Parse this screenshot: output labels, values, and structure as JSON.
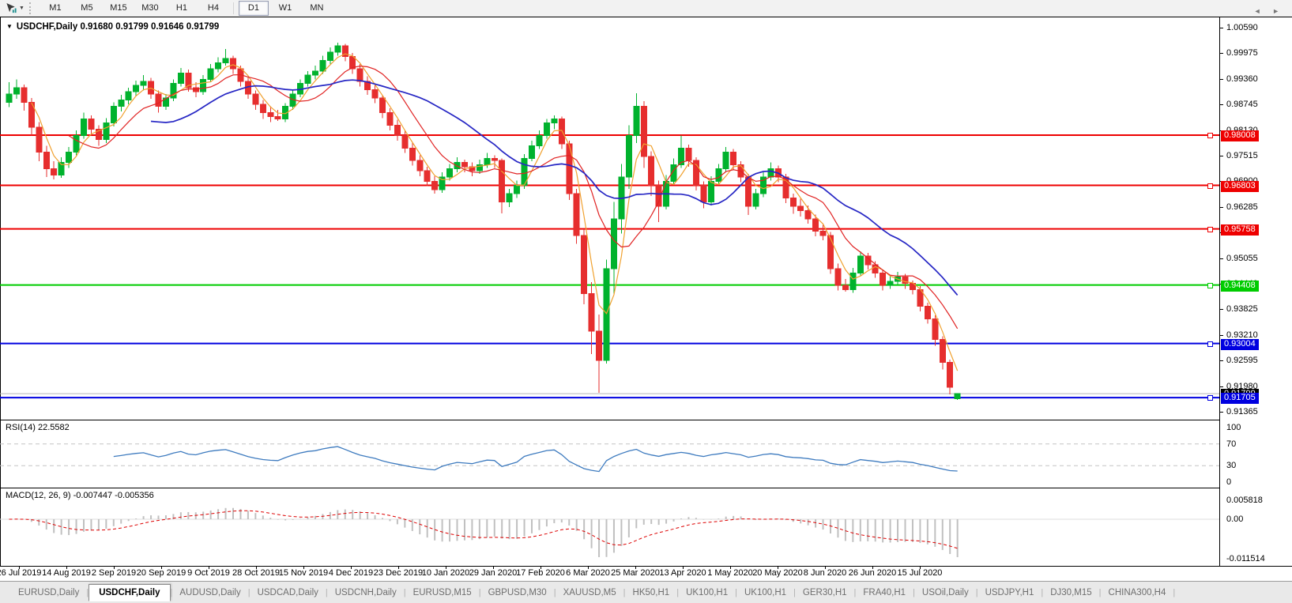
{
  "toolbar": {
    "tool_icon": "chart-cursor",
    "tool_caret": "▼",
    "timeframes": [
      "M1",
      "M5",
      "M15",
      "M30",
      "H1",
      "H4",
      "D1",
      "W1",
      "MN"
    ],
    "active_timeframe": "D1"
  },
  "chart_header": {
    "collapse_icon": "▼",
    "text": "USDCHF,Daily 0.91680 0.91799 0.91646 0.91799"
  },
  "chart_data": {
    "type": "candlestick",
    "symbol": "USDCHF",
    "timeframe": "Daily",
    "ohlc_display": {
      "open": "0.91680",
      "high": "0.91799",
      "low": "0.91646",
      "close": "0.91799"
    },
    "y_ticks": [
      "1.00590",
      "0.99975",
      "0.99360",
      "0.98745",
      "0.98130",
      "0.97515",
      "0.96900",
      "0.96285",
      "0.95670",
      "0.95055",
      "0.94440",
      "0.93825",
      "0.93210",
      "0.92595",
      "0.91980",
      "0.91365"
    ],
    "y_range": [
      0.91365,
      1.0059
    ],
    "x_labels": [
      "26 Jul 2019",
      "14 Aug 2019",
      "2 Sep 2019",
      "20 Sep 2019",
      "9 Oct 2019",
      "28 Oct 2019",
      "15 Nov 2019",
      "4 Dec 2019",
      "23 Dec 2019",
      "10 Jan 2020",
      "29 Jan 2020",
      "17 Feb 2020",
      "6 Mar 2020",
      "25 Mar 2020",
      "13 Apr 2020",
      "1 May 2020",
      "20 May 2020",
      "8 Jun 2020",
      "26 Jun 2020",
      "15 Jul 2020"
    ],
    "horizontal_lines": [
      {
        "label": "0.98008",
        "value": 0.98008,
        "color": "#ee0000"
      },
      {
        "label": "0.96803",
        "value": 0.96803,
        "color": "#ee0000"
      },
      {
        "label": "0.95758",
        "value": 0.95758,
        "color": "#ee0000"
      },
      {
        "label": "0.94408",
        "value": 0.94408,
        "color": "#00cc00"
      },
      {
        "label": "0.93004",
        "value": 0.93004,
        "color": "#0000e0"
      },
      {
        "label": "0.91705",
        "value": 0.91705,
        "color": "#0000e0"
      }
    ],
    "bid": {
      "label": "0.91799",
      "value": 0.91799,
      "label_bg": "#000000",
      "line_color": "#b4b4b4"
    },
    "up_color": "#00b22d",
    "down_color": "#e62e2e",
    "moving_averages": [
      {
        "name": "fast",
        "render_period": 4,
        "color": "#f0a12f"
      },
      {
        "name": "medium",
        "render_period": 9,
        "color": "#e02222"
      },
      {
        "name": "slow",
        "render_period": 20,
        "color": "#2626c4"
      }
    ],
    "indicators": {
      "rsi": {
        "label": "RSI(14) 22.5582",
        "period": 14,
        "value": "22.5582",
        "color": "#3e7bbf",
        "levels": [
          {
            "label": "100",
            "value": 100
          },
          {
            "label": "70",
            "value": 70,
            "dashed": true
          },
          {
            "label": "30",
            "value": 30,
            "dashed": true
          },
          {
            "label": "0",
            "value": 0
          }
        ]
      },
      "macd": {
        "label": "MACD(12, 26, 9) -0.007447 -0.005356",
        "fast": 12,
        "slow": 26,
        "signal": 9,
        "macd_value": "-0.007447",
        "signal_value": "-0.005356",
        "scale_labels": [
          "0.005818",
          "0.00",
          "-0.011514"
        ],
        "hist_color": "#c0c0c0",
        "signal_color": "#dd0000"
      }
    },
    "candles": [
      [
        0.988,
        0.9928,
        0.9868,
        0.99
      ],
      [
        0.99,
        0.9935,
        0.9888,
        0.9915
      ],
      [
        0.9915,
        0.9922,
        0.986,
        0.988
      ],
      [
        0.988,
        0.989,
        0.98,
        0.982
      ],
      [
        0.982,
        0.9832,
        0.9738,
        0.976
      ],
      [
        0.976,
        0.9775,
        0.97,
        0.972
      ],
      [
        0.972,
        0.9738,
        0.9695,
        0.9705
      ],
      [
        0.9705,
        0.9748,
        0.9698,
        0.9735
      ],
      [
        0.9735,
        0.9772,
        0.9722,
        0.976
      ],
      [
        0.976,
        0.9812,
        0.9752,
        0.98
      ],
      [
        0.98,
        0.9855,
        0.9792,
        0.984
      ],
      [
        0.984,
        0.9848,
        0.98,
        0.9815
      ],
      [
        0.9815,
        0.9825,
        0.9775,
        0.979
      ],
      [
        0.979,
        0.9842,
        0.9782,
        0.983
      ],
      [
        0.983,
        0.988,
        0.9822,
        0.987
      ],
      [
        0.987,
        0.9898,
        0.9858,
        0.9885
      ],
      [
        0.9885,
        0.9915,
        0.9875,
        0.9905
      ],
      [
        0.9905,
        0.9932,
        0.9895,
        0.992
      ],
      [
        0.992,
        0.9945,
        0.9908,
        0.993
      ],
      [
        0.993,
        0.9938,
        0.9888,
        0.99
      ],
      [
        0.99,
        0.9908,
        0.9855,
        0.987
      ],
      [
        0.987,
        0.99,
        0.9862,
        0.989
      ],
      [
        0.989,
        0.9935,
        0.9882,
        0.9925
      ],
      [
        0.9925,
        0.9962,
        0.9918,
        0.995
      ],
      [
        0.995,
        0.9958,
        0.9905,
        0.9915
      ],
      [
        0.9915,
        0.9928,
        0.9892,
        0.9905
      ],
      [
        0.9905,
        0.9945,
        0.9898,
        0.9935
      ],
      [
        0.9935,
        0.9972,
        0.9928,
        0.996
      ],
      [
        0.996,
        0.9988,
        0.9952,
        0.9975
      ],
      [
        0.9975,
        1.0008,
        0.9968,
        0.9985
      ],
      [
        0.9985,
        0.9992,
        0.9948,
        0.996
      ],
      [
        0.996,
        0.9968,
        0.9918,
        0.993
      ],
      [
        0.993,
        0.994,
        0.9888,
        0.99
      ],
      [
        0.99,
        0.9908,
        0.9862,
        0.9875
      ],
      [
        0.9875,
        0.9885,
        0.984,
        0.9855
      ],
      [
        0.9855,
        0.987,
        0.9832,
        0.9845
      ],
      [
        0.9845,
        0.9862,
        0.9835,
        0.984
      ],
      [
        0.984,
        0.9878,
        0.9832,
        0.987
      ],
      [
        0.987,
        0.991,
        0.9862,
        0.99
      ],
      [
        0.99,
        0.9935,
        0.9892,
        0.9925
      ],
      [
        0.9925,
        0.9955,
        0.9918,
        0.9945
      ],
      [
        0.9945,
        0.9968,
        0.9935,
        0.9955
      ],
      [
        0.9955,
        0.9992,
        0.9948,
        0.998
      ],
      [
        0.998,
        1.0012,
        0.9972,
        1.0
      ],
      [
        1.0,
        1.0023,
        0.9992,
        1.0015
      ],
      [
        1.0015,
        1.002,
        0.9978,
        0.999
      ],
      [
        0.999,
        0.9998,
        0.9948,
        0.996
      ],
      [
        0.996,
        0.9972,
        0.9918,
        0.993
      ],
      [
        0.993,
        0.9942,
        0.9898,
        0.991
      ],
      [
        0.991,
        0.9922,
        0.9878,
        0.989
      ],
      [
        0.989,
        0.9898,
        0.9842,
        0.9855
      ],
      [
        0.9855,
        0.9865,
        0.9812,
        0.9825
      ],
      [
        0.9825,
        0.9838,
        0.9788,
        0.98
      ],
      [
        0.98,
        0.9812,
        0.9758,
        0.977
      ],
      [
        0.977,
        0.9782,
        0.9728,
        0.974
      ],
      [
        0.974,
        0.9752,
        0.9702,
        0.9715
      ],
      [
        0.9715,
        0.9725,
        0.9678,
        0.969
      ],
      [
        0.969,
        0.9702,
        0.966,
        0.967
      ],
      [
        0.967,
        0.9712,
        0.9662,
        0.97
      ],
      [
        0.97,
        0.9732,
        0.9692,
        0.972
      ],
      [
        0.972,
        0.9748,
        0.9712,
        0.9735
      ],
      [
        0.9735,
        0.9742,
        0.9712,
        0.9725
      ],
      [
        0.9725,
        0.9735,
        0.9702,
        0.9715
      ],
      [
        0.9715,
        0.9742,
        0.9708,
        0.973
      ],
      [
        0.973,
        0.9758,
        0.9722,
        0.9745
      ],
      [
        0.9745,
        0.9752,
        0.9722,
        0.974
      ],
      [
        0.974,
        0.9745,
        0.9613,
        0.964
      ],
      [
        0.964,
        0.9672,
        0.9628,
        0.966
      ],
      [
        0.966,
        0.9692,
        0.965,
        0.968
      ],
      [
        0.968,
        0.9755,
        0.9672,
        0.9745
      ],
      [
        0.9745,
        0.9788,
        0.9738,
        0.9775
      ],
      [
        0.9775,
        0.9812,
        0.9768,
        0.98
      ],
      [
        0.98,
        0.984,
        0.9792,
        0.983
      ],
      [
        0.983,
        0.9848,
        0.9815,
        0.984
      ],
      [
        0.984,
        0.9845,
        0.9768,
        0.978
      ],
      [
        0.978,
        0.9788,
        0.9645,
        0.966
      ],
      [
        0.966,
        0.9672,
        0.954,
        0.956
      ],
      [
        0.956,
        0.9575,
        0.9395,
        0.942
      ],
      [
        0.942,
        0.9448,
        0.9275,
        0.933
      ],
      [
        0.933,
        0.937,
        0.9182,
        0.926
      ],
      [
        0.926,
        0.9502,
        0.9252,
        0.948
      ],
      [
        0.948,
        0.964,
        0.9418,
        0.96
      ],
      [
        0.96,
        0.9732,
        0.9565,
        0.97
      ],
      [
        0.97,
        0.9825,
        0.9672,
        0.98
      ],
      [
        0.98,
        0.9901,
        0.9782,
        0.987
      ],
      [
        0.987,
        0.9882,
        0.9722,
        0.975
      ],
      [
        0.975,
        0.9762,
        0.9655,
        0.968
      ],
      [
        0.968,
        0.9692,
        0.9592,
        0.963
      ],
      [
        0.963,
        0.9705,
        0.9622,
        0.969
      ],
      [
        0.969,
        0.9745,
        0.9682,
        0.973
      ],
      [
        0.973,
        0.98,
        0.9722,
        0.977
      ],
      [
        0.977,
        0.9778,
        0.9725,
        0.974
      ],
      [
        0.974,
        0.9748,
        0.9668,
        0.968
      ],
      [
        0.968,
        0.969,
        0.9625,
        0.964
      ],
      [
        0.964,
        0.9702,
        0.9632,
        0.969
      ],
      [
        0.969,
        0.9732,
        0.9682,
        0.972
      ],
      [
        0.972,
        0.9772,
        0.9712,
        0.976
      ],
      [
        0.976,
        0.9768,
        0.9718,
        0.973
      ],
      [
        0.973,
        0.9738,
        0.9688,
        0.97
      ],
      [
        0.97,
        0.9708,
        0.9609,
        0.963
      ],
      [
        0.963,
        0.9672,
        0.9622,
        0.966
      ],
      [
        0.966,
        0.9712,
        0.9652,
        0.97
      ],
      [
        0.97,
        0.9735,
        0.9692,
        0.972
      ],
      [
        0.972,
        0.9728,
        0.9688,
        0.97
      ],
      [
        0.97,
        0.9708,
        0.9638,
        0.965
      ],
      [
        0.965,
        0.966,
        0.9612,
        0.963
      ],
      [
        0.963,
        0.9648,
        0.9605,
        0.962
      ],
      [
        0.962,
        0.9632,
        0.9588,
        0.96
      ],
      [
        0.96,
        0.961,
        0.9558,
        0.957
      ],
      [
        0.957,
        0.9585,
        0.9548,
        0.956
      ],
      [
        0.956,
        0.9568,
        0.9468,
        0.948
      ],
      [
        0.948,
        0.9492,
        0.9428,
        0.944
      ],
      [
        0.944,
        0.9455,
        0.9425,
        0.943
      ],
      [
        0.943,
        0.9482,
        0.9422,
        0.947
      ],
      [
        0.947,
        0.9522,
        0.9462,
        0.951
      ],
      [
        0.951,
        0.9518,
        0.9478,
        0.949
      ],
      [
        0.949,
        0.9498,
        0.9458,
        0.947
      ],
      [
        0.947,
        0.9478,
        0.9428,
        0.944
      ],
      [
        0.944,
        0.9462,
        0.9432,
        0.945
      ],
      [
        0.945,
        0.9472,
        0.9442,
        0.946
      ],
      [
        0.946,
        0.9468,
        0.9432,
        0.9445
      ],
      [
        0.9445,
        0.9452,
        0.9418,
        0.943
      ],
      [
        0.943,
        0.9438,
        0.9378,
        0.939
      ],
      [
        0.939,
        0.9398,
        0.9348,
        0.936
      ],
      [
        0.936,
        0.9368,
        0.9295,
        0.931
      ],
      [
        0.931,
        0.9318,
        0.9238,
        0.9255
      ],
      [
        0.9255,
        0.9262,
        0.9178,
        0.9195
      ],
      [
        0.9168,
        0.91799,
        0.91646,
        0.91799
      ]
    ]
  },
  "tabs": {
    "items": [
      "EURUSD,Daily",
      "USDCHF,Daily",
      "AUDUSD,Daily",
      "USDCAD,Daily",
      "USDCNH,Daily",
      "EURUSD,M15",
      "GBPUSD,M30",
      "XAUUSD,M5",
      "HK50,H1",
      "UK100,H1",
      "UK100,H1",
      "GER30,H1",
      "FRA40,H1",
      "USOil,Daily",
      "USDJPY,H1",
      "DJ30,M15",
      "CHINA300,H4"
    ],
    "active_index": 1,
    "scroll_left": "◄",
    "scroll_right": "►"
  }
}
